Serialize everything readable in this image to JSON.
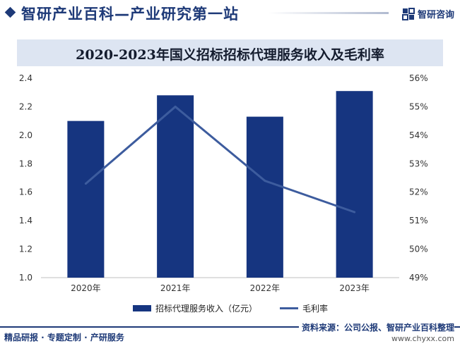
{
  "header": {
    "title": "智研产业百科—产业研究第一站",
    "brand_name": "智研咨询",
    "brand_color": "#1e3a78"
  },
  "chart_data": {
    "type": "bar",
    "title": "2020-2023年国义招标招标代理服务收入及毛利率",
    "categories": [
      "2020年",
      "2021年",
      "2022年",
      "2023年"
    ],
    "series": [
      {
        "name": "招标代理服务收入（亿元）",
        "type": "bar",
        "axis": "left",
        "values": [
          2.1,
          2.28,
          2.13,
          2.31
        ],
        "color": "#163580"
      },
      {
        "name": "毛利率",
        "type": "line",
        "axis": "right",
        "values": [
          52.3,
          55.0,
          52.4,
          51.3
        ],
        "color": "#3d5c9e"
      }
    ],
    "y_left": {
      "min": 1.0,
      "max": 2.4,
      "ticks": [
        "1.0",
        "1.2",
        "1.4",
        "1.6",
        "1.8",
        "2.0",
        "2.2",
        "2.4"
      ]
    },
    "y_right": {
      "min": 49,
      "max": 56,
      "ticks": [
        "49%",
        "50%",
        "51%",
        "52%",
        "53%",
        "54%",
        "55%",
        "56%"
      ]
    },
    "legend": "bottom",
    "grid": false
  },
  "footer": {
    "tagline": "精品研报 · 专题定制 · 产研服务",
    "source": "资料来源：公司公报、智研产业百科整理",
    "url": "www.chyxx.com"
  }
}
